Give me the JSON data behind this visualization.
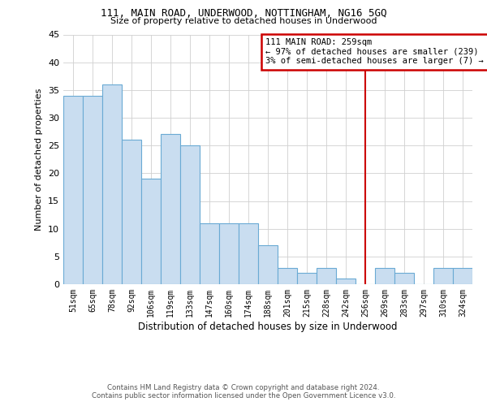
{
  "title": "111, MAIN ROAD, UNDERWOOD, NOTTINGHAM, NG16 5GQ",
  "subtitle": "Size of property relative to detached houses in Underwood",
  "xlabel": "Distribution of detached houses by size in Underwood",
  "ylabel": "Number of detached properties",
  "footer_line1": "Contains HM Land Registry data © Crown copyright and database right 2024.",
  "footer_line2": "Contains public sector information licensed under the Open Government Licence v3.0.",
  "bin_labels": [
    "51sqm",
    "65sqm",
    "78sqm",
    "92sqm",
    "106sqm",
    "119sqm",
    "133sqm",
    "147sqm",
    "160sqm",
    "174sqm",
    "188sqm",
    "201sqm",
    "215sqm",
    "228sqm",
    "242sqm",
    "256sqm",
    "269sqm",
    "283sqm",
    "297sqm",
    "310sqm",
    "324sqm"
  ],
  "bar_heights": [
    34,
    34,
    36,
    26,
    19,
    27,
    25,
    11,
    11,
    11,
    7,
    3,
    2,
    3,
    1,
    0,
    3,
    2,
    0,
    3,
    3
  ],
  "bar_color": "#c9ddf0",
  "bar_edge_color": "#6aaad4",
  "annotation_box_color": "#cc0000",
  "vline_color": "#cc0000",
  "annotation_title": "111 MAIN ROAD: 259sqm",
  "annotation_line1": "← 97% of detached houses are smaller (239)",
  "annotation_line2": "3% of semi-detached houses are larger (7) →",
  "vline_x": 15.0,
  "ylim": [
    0,
    45
  ],
  "yticks": [
    0,
    5,
    10,
    15,
    20,
    25,
    30,
    35,
    40,
    45
  ],
  "background_color": "#ffffff",
  "grid_color": "#d0d0d0"
}
